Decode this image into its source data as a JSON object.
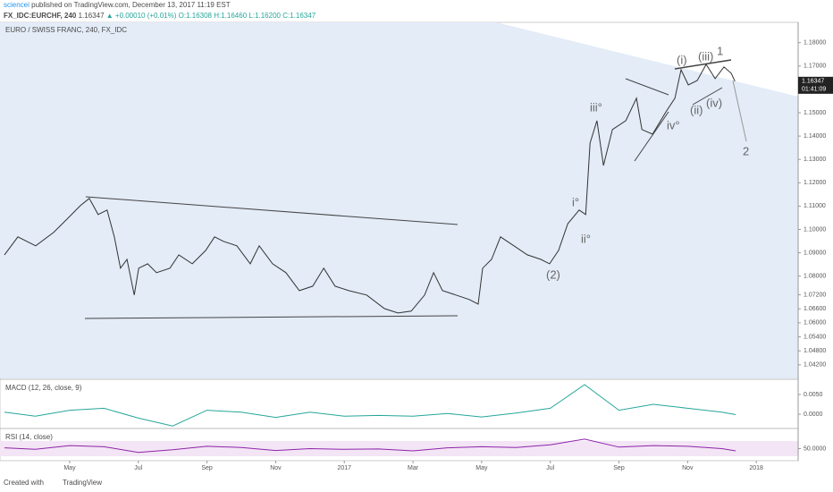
{
  "header": {
    "publisher": "sciencei",
    "published": "published on TradingView.com, December 13, 2017 11:19 EST",
    "symbol": "FX_IDC:EURCHF, 240",
    "last": "1.16347",
    "change": "▲ +0.00010 (+0.01%)",
    "ohlc": [
      "O:1.16308",
      "H:1.16460",
      "L:1.16200",
      "C:1.16347"
    ]
  },
  "footer": {
    "created": "Created with",
    "brand": "TradingView"
  },
  "chart_data": [
    {
      "type": "line",
      "title": "EURO / SWISS FRANC, 240, FX_IDC",
      "color": "#333333",
      "x": [
        2.1,
        2.49,
        3.01,
        3.53,
        3.92,
        4.31,
        4.57,
        4.83,
        5.09,
        5.3,
        5.48,
        5.67,
        5.88,
        6.01,
        6.27,
        6.53,
        6.92,
        7.18,
        7.57,
        7.96,
        8.22,
        8.48,
        8.87,
        9.26,
        9.52,
        9.91,
        10.3,
        10.69,
        11.08,
        11.4,
        11.73,
        12.13,
        12.65,
        13.17,
        13.56,
        13.95,
        14.34,
        14.6,
        14.86,
        15.25,
        15.64,
        15.9,
        16.03,
        16.29,
        16.55,
        16.94,
        17.33,
        17.72,
        17.98,
        18.24,
        18.51,
        18.84,
        19.03,
        19.16,
        19.36,
        19.55,
        19.81,
        20.2,
        20.51,
        20.67,
        20.98,
        21.37,
        21.63,
        21.81,
        22.02,
        22.28,
        22.54,
        22.8,
        23.06,
        23.27,
        23.38
      ],
      "values": [
        1.0891,
        1.0968,
        1.093,
        1.0987,
        1.1044,
        1.1102,
        1.1133,
        1.1064,
        1.1083,
        1.0968,
        1.0834,
        1.0872,
        1.0719,
        1.0834,
        1.0853,
        1.0815,
        1.0834,
        1.0891,
        1.0853,
        1.091,
        1.0968,
        1.0949,
        1.093,
        1.0853,
        1.093,
        1.0853,
        1.0815,
        1.0738,
        1.0757,
        1.0834,
        1.0757,
        1.0738,
        1.0719,
        1.0661,
        1.0642,
        1.065,
        1.0719,
        1.0815,
        1.0738,
        1.0719,
        1.07,
        1.068,
        1.0834,
        1.0872,
        1.0968,
        1.093,
        1.0891,
        1.0872,
        1.0853,
        1.091,
        1.1025,
        1.1083,
        1.1064,
        1.137,
        1.1466,
        1.1274,
        1.1428,
        1.1466,
        1.1562,
        1.1428,
        1.1408,
        1.1504,
        1.1562,
        1.1684,
        1.1619,
        1.1638,
        1.1707,
        1.1646,
        1.1696,
        1.1669,
        1.16347
      ],
      "xlim": [
        1.97,
        25.22
      ],
      "xticks": [
        {
          "value": 4,
          "label": "May"
        },
        {
          "value": 6,
          "label": "Jul"
        },
        {
          "value": 8,
          "label": "Sep"
        },
        {
          "value": 10,
          "label": "Nov"
        },
        {
          "value": 12,
          "label": "2017"
        },
        {
          "value": 14,
          "label": "Mar"
        },
        {
          "value": 16,
          "label": "May"
        },
        {
          "value": 18,
          "label": "Jul"
        },
        {
          "value": 20,
          "label": "Sep"
        },
        {
          "value": 22,
          "label": "Nov"
        },
        {
          "value": 24,
          "label": "2018"
        }
      ],
      "ylim": [
        1.0362,
        1.1887
      ],
      "yticks": [
        {
          "value": 1.18,
          "label": "1.18000"
        },
        {
          "value": 1.17,
          "label": "1.17000"
        },
        {
          "value": 1.15,
          "label": "1.15000"
        },
        {
          "value": 1.14,
          "label": "1.14000"
        },
        {
          "value": 1.13,
          "label": "1.13000"
        },
        {
          "value": 1.12,
          "label": "1.12000"
        },
        {
          "value": 1.11,
          "label": "1.11000"
        },
        {
          "value": 1.1,
          "label": "1.10000"
        },
        {
          "value": 1.09,
          "label": "1.09000"
        },
        {
          "value": 1.08,
          "label": "1.08000"
        },
        {
          "value": 1.072,
          "label": "1.07200"
        },
        {
          "value": 1.066,
          "label": "1.06600"
        },
        {
          "value": 1.06,
          "label": "1.06000"
        },
        {
          "value": 1.054,
          "label": "1.05400"
        },
        {
          "value": 1.048,
          "label": "1.04800"
        },
        {
          "value": 1.042,
          "label": "1.04200"
        }
      ],
      "last_price": 1.16347,
      "countdown": "01:41:09",
      "annotations": [
        "(i)",
        "(iii)",
        "1",
        "iii°",
        "iv°",
        "(ii)",
        "(iv)",
        "2",
        "i°",
        "ii°",
        "(2)"
      ]
    },
    {
      "type": "line",
      "title": "MACD (12, 26, close, 9)",
      "color": "#26a69a",
      "x": [
        2.1,
        3,
        4,
        5,
        6,
        7,
        8,
        9,
        10,
        11,
        12,
        13,
        14,
        15,
        16,
        17,
        18,
        19,
        20,
        21,
        22,
        23,
        23.4
      ],
      "values": [
        0.0005,
        -0.0005,
        0.001,
        0.0015,
        -0.001,
        -0.003,
        0.001,
        0.0005,
        -0.0008,
        0.0005,
        -0.0005,
        -0.0003,
        -0.0005,
        0.0002,
        -0.0007,
        0.0003,
        0.0015,
        0.0075,
        0.001,
        0.0025,
        0.0015,
        0.0005,
        -0.0001
      ],
      "ylim": [
        -0.0034,
        0.00864
      ],
      "yticks": [
        {
          "value": 0.005,
          "label": "0.0050"
        },
        {
          "value": 0,
          "label": "0.0000"
        }
      ]
    },
    {
      "type": "line",
      "title": "RSI (14, close)",
      "color": "#8e24aa",
      "x": [
        2.1,
        3,
        4,
        5,
        6,
        7,
        8,
        9,
        10,
        11,
        12,
        13,
        14,
        15,
        16,
        17,
        18,
        19,
        20,
        21,
        22,
        23,
        23.4
      ],
      "values": [
        52,
        48,
        58,
        55,
        40,
        47,
        56,
        53,
        45,
        50,
        48,
        49,
        44,
        52,
        55,
        53,
        60,
        75,
        54,
        58,
        56,
        50,
        44
      ],
      "ylim": [
        18.2,
        100.6
      ],
      "yticks": [
        {
          "value": 50,
          "label": "50.0000"
        }
      ]
    }
  ]
}
